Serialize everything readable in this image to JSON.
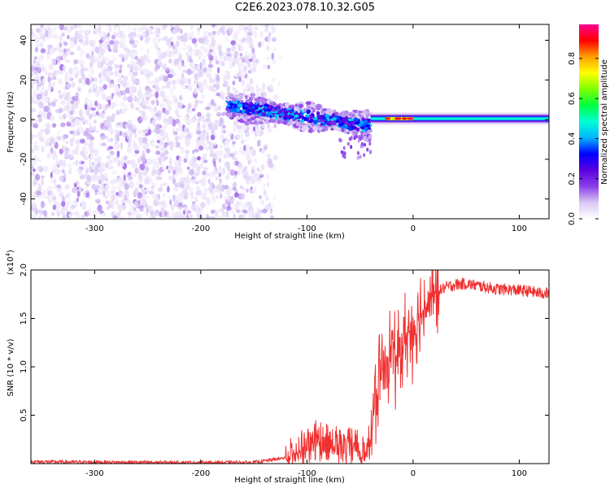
{
  "title": "C2E6.2023.078.10.32.G05",
  "chart_data": [
    {
      "type": "heatmap",
      "xlabel": "Height of straight line (km)",
      "ylabel": "Frequency (Hz)",
      "xlim": [
        -360,
        128
      ],
      "ylim": [
        -50,
        48
      ],
      "xticks": [
        -300,
        -200,
        -100,
        0,
        100
      ],
      "yticks": [
        -40,
        -20,
        0,
        20,
        40
      ],
      "colorbar": {
        "label": "Normalized spectral amplitude",
        "range": [
          0,
          0.97
        ],
        "ticks": [
          0.0,
          0.2,
          0.4,
          0.6,
          0.8
        ],
        "colormap": [
          "#ffffff",
          "#d8c8f4",
          "#8c40e8",
          "#5a00e0",
          "#0000ff",
          "#00b4ff",
          "#00ffd4",
          "#00ff40",
          "#7cff00",
          "#ffff00",
          "#ffa000",
          "#ff0000",
          "#ff0090"
        ]
      },
      "regions": [
        {
          "x_range": [
            -360,
            -145
          ],
          "description": "broadband noise",
          "amplitude": [
            0.0,
            0.12
          ]
        },
        {
          "x_range": [
            -175,
            -40
          ],
          "center_freq": [
            7,
            -3
          ],
          "bandwidth_hz": 10,
          "amplitude": [
            0.15,
            0.45
          ]
        },
        {
          "x_range": [
            -40,
            128
          ],
          "center_freq": 0.5,
          "bandwidth_hz": 4,
          "amplitude": [
            0.3,
            0.95
          ],
          "peak_x": [
            -25,
            0
          ]
        }
      ]
    },
    {
      "type": "line",
      "xlabel": "Height of straight line (km)",
      "ylabel": "SNR (10 * v/v)",
      "multiplier_label": "(x10",
      "multiplier_exp": "4",
      "xlim": [
        -360,
        128
      ],
      "ylim": [
        0,
        20000
      ],
      "xticks": [
        -300,
        -200,
        -100,
        0,
        100
      ],
      "yticks": [
        5000,
        10000,
        15000,
        20000
      ],
      "ytick_labels": [
        "0.5",
        "1.0",
        "1.5",
        "2.0"
      ],
      "color": "#f03030",
      "series": [
        {
          "x": [
            -360,
            -300,
            -200,
            -150,
            -120,
            -110,
            -100,
            -90,
            -80,
            -70,
            -60,
            -50,
            -45,
            -40,
            -35,
            -30,
            -25,
            -20,
            -15,
            -10,
            -5,
            0,
            10,
            20,
            30,
            40,
            50,
            60,
            70,
            80,
            90,
            100,
            110,
            120,
            128
          ],
          "y": [
            200,
            150,
            100,
            120,
            600,
            1500,
            2200,
            3000,
            2600,
            2300,
            2400,
            2200,
            1800,
            2600,
            7000,
            9500,
            11000,
            12000,
            10500,
            12500,
            13500,
            14000,
            16000,
            17500,
            18200,
            18500,
            18600,
            18400,
            18200,
            18000,
            18000,
            17900,
            17800,
            17600,
            17600
          ]
        }
      ]
    }
  ]
}
